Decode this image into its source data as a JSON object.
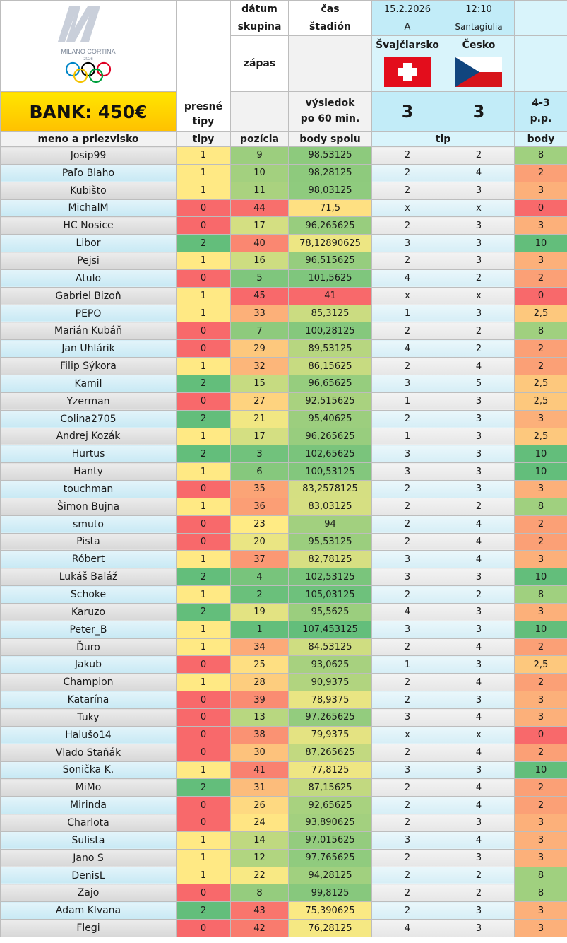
{
  "header": {
    "logo_text": "MILANO CORTINA",
    "logo_year": "2026",
    "bank": "BANK: 450€",
    "presne_label": "presné",
    "tipy_label": "tipy",
    "datum_label": "dátum",
    "skupina_label": "skupina",
    "zapas_label": "zápas",
    "cas_label": "čas",
    "stadion_label": "štadión",
    "vysledok_label_1": "výsledok",
    "vysledok_label_2": "po 60 min.",
    "date": "15.2.2026",
    "time": "12:10",
    "group": "A",
    "stadium": "Santagiulia",
    "team1": "Švajčiarsko",
    "team2": "Česko",
    "flag1": "swiss-flag",
    "flag2": "czech-flag",
    "score1": "3",
    "score2": "3",
    "final_1": "4-3",
    "final_2": "p.p."
  },
  "columns": {
    "name": "meno a priezvisko",
    "tipy": "tipy",
    "pozicia": "pozícia",
    "body_spolu": "body spolu",
    "tip": "tip",
    "body": "body"
  },
  "colors": {
    "red": "#f8696b",
    "yellow": "#ffe984",
    "green": "#63be7b",
    "bank": "#ffd400",
    "header_cyan": "#d9f4fb"
  },
  "rows": [
    [
      "Josip99",
      "1",
      "9",
      "98,53125",
      "2",
      "2",
      "8"
    ],
    [
      "Paľo Blaho",
      "1",
      "10",
      "98,28125",
      "2",
      "4",
      "2"
    ],
    [
      "Kubišto",
      "1",
      "11",
      "98,03125",
      "2",
      "3",
      "3"
    ],
    [
      "MichalM",
      "0",
      "44",
      "71,5",
      "x",
      "x",
      "0"
    ],
    [
      "HC Nosice",
      "0",
      "17",
      "96,265625",
      "2",
      "3",
      "3"
    ],
    [
      "Libor",
      "2",
      "40",
      "78,12890625",
      "3",
      "3",
      "10"
    ],
    [
      "Pejsi",
      "1",
      "16",
      "96,515625",
      "2",
      "3",
      "3"
    ],
    [
      "Atulo",
      "0",
      "5",
      "101,5625",
      "4",
      "2",
      "2"
    ],
    [
      "Gabriel Bizoň",
      "1",
      "45",
      "41",
      "x",
      "x",
      "0"
    ],
    [
      "PEPO",
      "1",
      "33",
      "85,3125",
      "1",
      "3",
      "2,5"
    ],
    [
      "Marián Kubáň",
      "0",
      "7",
      "100,28125",
      "2",
      "2",
      "8"
    ],
    [
      "Jan Uhlárik",
      "0",
      "29",
      "89,53125",
      "4",
      "2",
      "2"
    ],
    [
      "Filip Sýkora",
      "1",
      "32",
      "86,15625",
      "2",
      "4",
      "2"
    ],
    [
      "Kamil",
      "2",
      "15",
      "96,65625",
      "3",
      "5",
      "2,5"
    ],
    [
      "Yzerman",
      "0",
      "27",
      "92,515625",
      "1",
      "3",
      "2,5"
    ],
    [
      "Colina2705",
      "2",
      "21",
      "95,40625",
      "2",
      "3",
      "3"
    ],
    [
      "Andrej Kozák",
      "1",
      "17",
      "96,265625",
      "1",
      "3",
      "2,5"
    ],
    [
      "Hurtus",
      "2",
      "3",
      "102,65625",
      "3",
      "3",
      "10"
    ],
    [
      "Hanty",
      "1",
      "6",
      "100,53125",
      "3",
      "3",
      "10"
    ],
    [
      "touchman",
      "0",
      "35",
      "83,2578125",
      "2",
      "3",
      "3"
    ],
    [
      "Šimon Bujna",
      "1",
      "36",
      "83,03125",
      "2",
      "2",
      "8"
    ],
    [
      "smuto",
      "0",
      "23",
      "94",
      "2",
      "4",
      "2"
    ],
    [
      "Pista",
      "0",
      "20",
      "95,53125",
      "2",
      "4",
      "2"
    ],
    [
      "Róbert",
      "1",
      "37",
      "82,78125",
      "3",
      "4",
      "3"
    ],
    [
      "Lukáš Baláž",
      "2",
      "4",
      "102,53125",
      "3",
      "3",
      "10"
    ],
    [
      "Schoke",
      "1",
      "2",
      "105,03125",
      "2",
      "2",
      "8"
    ],
    [
      "Karuzo",
      "2",
      "19",
      "95,5625",
      "4",
      "3",
      "3"
    ],
    [
      "Peter_B",
      "1",
      "1",
      "107,453125",
      "3",
      "3",
      "10"
    ],
    [
      "Ďuro",
      "1",
      "34",
      "84,53125",
      "2",
      "4",
      "2"
    ],
    [
      "Jakub",
      "0",
      "25",
      "93,0625",
      "1",
      "3",
      "2,5"
    ],
    [
      "Champion",
      "1",
      "28",
      "90,9375",
      "2",
      "4",
      "2"
    ],
    [
      "Katarína",
      "0",
      "39",
      "78,9375",
      "2",
      "3",
      "3"
    ],
    [
      "Tuky",
      "0",
      "13",
      "97,265625",
      "3",
      "4",
      "3"
    ],
    [
      "Halušo14",
      "0",
      "38",
      "79,9375",
      "x",
      "x",
      "0"
    ],
    [
      "Vlado Staňák",
      "0",
      "30",
      "87,265625",
      "2",
      "4",
      "2"
    ],
    [
      "Sonička K.",
      "1",
      "41",
      "77,8125",
      "3",
      "3",
      "10"
    ],
    [
      "MiMo",
      "2",
      "31",
      "87,15625",
      "2",
      "4",
      "2"
    ],
    [
      "Mirinda",
      "0",
      "26",
      "92,65625",
      "2",
      "4",
      "2"
    ],
    [
      "Charlota",
      "0",
      "24",
      "93,890625",
      "2",
      "3",
      "3"
    ],
    [
      "Sulista",
      "1",
      "14",
      "97,015625",
      "3",
      "4",
      "3"
    ],
    [
      "Jano S",
      "1",
      "12",
      "97,765625",
      "2",
      "3",
      "3"
    ],
    [
      "DenisL",
      "1",
      "22",
      "94,28125",
      "2",
      "2",
      "8"
    ],
    [
      "Zajo",
      "0",
      "8",
      "99,8125",
      "2",
      "2",
      "8"
    ],
    [
      "Adam Klvana",
      "2",
      "43",
      "75,390625",
      "2",
      "3",
      "3"
    ],
    [
      "Flegi",
      "0",
      "42",
      "76,28125",
      "4",
      "3",
      "3"
    ]
  ]
}
